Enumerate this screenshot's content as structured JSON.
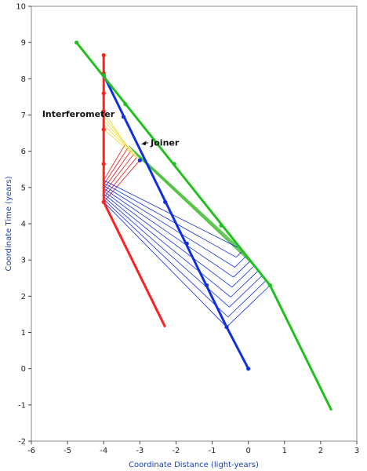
{
  "chart_data": {
    "type": "line",
    "xlabel": "Coordinate Distance (light-years)",
    "ylabel": "Coordinate Time (years)",
    "xlim": [
      -6,
      3
    ],
    "ylim": [
      -2,
      10
    ],
    "xticks": [
      -6,
      -5,
      -4,
      -3,
      -2,
      -1,
      0,
      1,
      2,
      3
    ],
    "yticks": [
      -2,
      -1,
      0,
      1,
      2,
      3,
      4,
      5,
      6,
      7,
      8,
      9,
      10
    ],
    "grid": false,
    "series": [
      {
        "color": "#ff2020",
        "points": [
          [
            -4,
            8.65
          ],
          [
            -4,
            4.6
          ]
        ],
        "markers": [
          [
            -4,
            8.65
          ],
          [
            -4,
            8.15
          ],
          [
            -4,
            7.6
          ],
          [
            -4,
            7.1
          ],
          [
            -4,
            6.6
          ],
          [
            -4,
            5.65
          ],
          [
            -4,
            4.6
          ]
        ]
      },
      {
        "color": "#ff2020",
        "points": [
          [
            -4,
            4.6
          ],
          [
            -2.3,
            1.15
          ]
        ],
        "markers": []
      },
      {
        "color": "#1030e0",
        "points": [
          [
            -4,
            8.1
          ],
          [
            -0.6,
            1.15
          ],
          [
            0,
            0
          ]
        ],
        "markers": [
          [
            -4,
            8.1
          ],
          [
            -3.45,
            6.95
          ],
          [
            -3.0,
            5.75
          ],
          [
            -2.3,
            4.6
          ],
          [
            -1.7,
            3.45
          ],
          [
            -1.15,
            2.3
          ],
          [
            -0.6,
            1.15
          ],
          [
            0,
            0
          ]
        ]
      },
      {
        "color": "#20c020",
        "points": [
          [
            -4.75,
            9
          ],
          [
            0.6,
            2.3
          ],
          [
            2.3,
            -1.15
          ]
        ],
        "markers": [
          [
            -4.75,
            9
          ],
          [
            -4.0,
            8.1
          ],
          [
            -3.4,
            7.3
          ],
          [
            -2.05,
            5.65
          ],
          [
            -0.75,
            3.95
          ],
          [
            0.6,
            2.3
          ]
        ]
      }
    ],
    "red_fan": {
      "color": "#e03030",
      "base": [
        -4,
        4.6
      ],
      "top": [
        -4,
        5.2
      ],
      "count": 6,
      "to_base": [
        -3.0,
        5.75
      ],
      "to_top": [
        -3.4,
        6.2
      ]
    },
    "yellow_fan": {
      "color": "#f0e040",
      "from_base": [
        -4,
        6.6
      ],
      "from_top": [
        -4,
        7.1
      ],
      "count": 5,
      "to_base": [
        -3.0,
        5.75
      ],
      "to_top": [
        -3.4,
        6.2
      ]
    },
    "green_fan": {
      "color": "#50c040",
      "from_base": [
        -3.1,
        5.9
      ],
      "from_top": [
        -3.3,
        6.15
      ],
      "count": 5,
      "to_base": [
        0.25,
        2.75
      ],
      "to_top": [
        -0.2,
        3.3
      ]
    },
    "blue_fan": {
      "color": "#1030e0",
      "from": [
        -4,
        4.6
      ],
      "from_top": [
        -4,
        5.2
      ],
      "count": 9,
      "to_base": [
        -0.6,
        1.15
      ],
      "to_top": [
        -0.3,
        3.35
      ],
      "cross_base": [
        0.6,
        2.3
      ]
    },
    "annotations": [
      {
        "text": "Interferometer",
        "x": -5.7,
        "y": 6.95
      },
      {
        "text": "Joiner",
        "x": -2.7,
        "y": 6.15,
        "arrow_to": [
          -2.95,
          6.2
        ]
      }
    ]
  }
}
